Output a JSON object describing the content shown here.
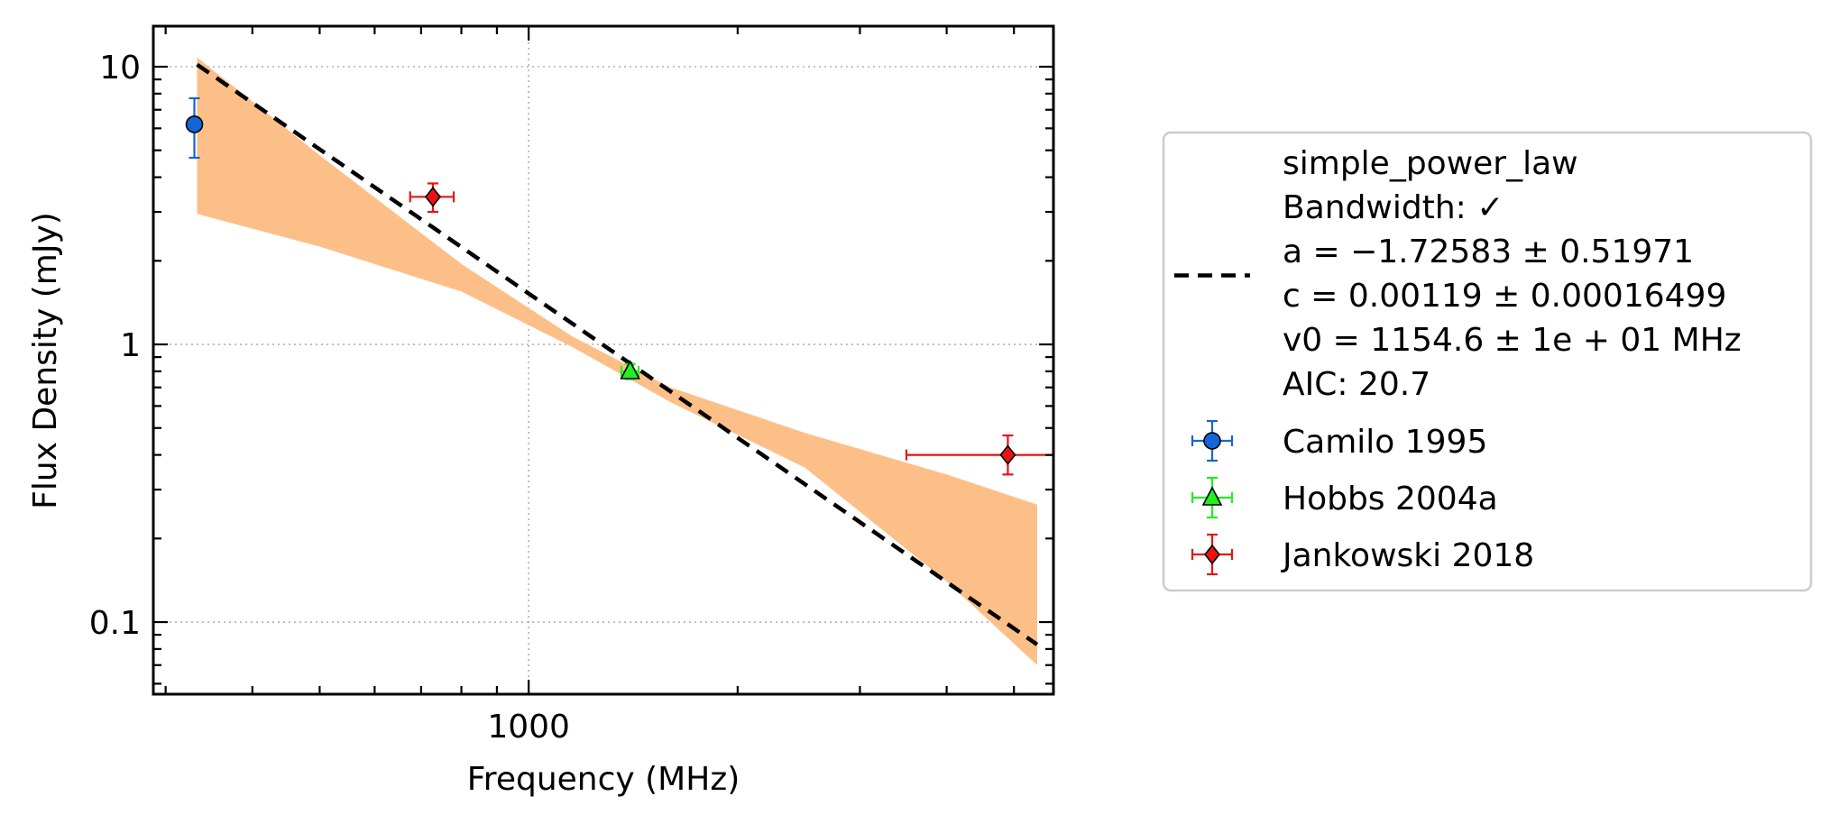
{
  "chart_data": {
    "type": "scatter",
    "xlabel": "Frequency (MHz)",
    "ylabel": "Flux Density (mJy)",
    "xscale": "log",
    "yscale": "log",
    "xlim": [
      288,
      5700
    ],
    "ylim": [
      0.055,
      14
    ],
    "xticks": [
      {
        "value": 1000,
        "label": "1000"
      }
    ],
    "yticks": [
      {
        "value": 0.1,
        "label": "0.1"
      },
      {
        "value": 1,
        "label": "1"
      },
      {
        "value": 10,
        "label": "10"
      }
    ],
    "grid": true,
    "legend_position": "right, outside plot",
    "fit": {
      "model": "simple_power_law",
      "a": -1.72583,
      "c": 0.00119,
      "v0": 1154.6,
      "x_range": [
        333,
        5400
      ],
      "line_color": "#000000",
      "band_color": "#fdbf88",
      "band": [
        {
          "x": 333,
          "lo": 2.95,
          "hi": 10.8
        },
        {
          "x": 500,
          "lo": 2.25,
          "hi": 4.8
        },
        {
          "x": 800,
          "lo": 1.55,
          "hi": 1.95
        },
        {
          "x": 1154.6,
          "lo": 0.98,
          "hi": 1.07
        },
        {
          "x": 1600,
          "lo": 0.62,
          "hi": 0.7
        },
        {
          "x": 2500,
          "lo": 0.36,
          "hi": 0.48
        },
        {
          "x": 4000,
          "lo": 0.14,
          "hi": 0.34
        },
        {
          "x": 5400,
          "lo": 0.07,
          "hi": 0.265
        }
      ],
      "legend_lines": [
        "simple_power_law",
        "Bandwidth: ✓",
        "a = −1.72583 ± 0.51971",
        "c = 0.00119 ± 0.00016499",
        "v0 = 1154.6 ± 1e + 01 MHz",
        "AIC: 20.7"
      ]
    },
    "series": [
      {
        "name": "Camilo 1995",
        "marker": "circle",
        "color": "#1565d8",
        "points": [
          {
            "x": 330,
            "y": 6.2,
            "yerr": [
              4.7,
              7.7
            ],
            "xerr": [
              327,
              333
            ]
          }
        ]
      },
      {
        "name": "Hobbs 2004a",
        "marker": "triangle",
        "color": "#22ee22",
        "points": [
          {
            "x": 1400,
            "y": 0.8,
            "yerr": [
              0.75,
              0.85
            ],
            "xerr": [
              1360,
              1440
            ]
          }
        ]
      },
      {
        "name": "Jankowski 2018",
        "marker": "diamond",
        "color": "#ee1111",
        "points": [
          {
            "x": 728,
            "y": 3.4,
            "yerr": [
              3.0,
              3.8
            ],
            "xerr": [
              675,
              780
            ]
          },
          {
            "x": 4900,
            "y": 0.4,
            "yerr": [
              0.34,
              0.47
            ],
            "xerr": [
              3500,
              6300
            ]
          }
        ]
      }
    ]
  }
}
